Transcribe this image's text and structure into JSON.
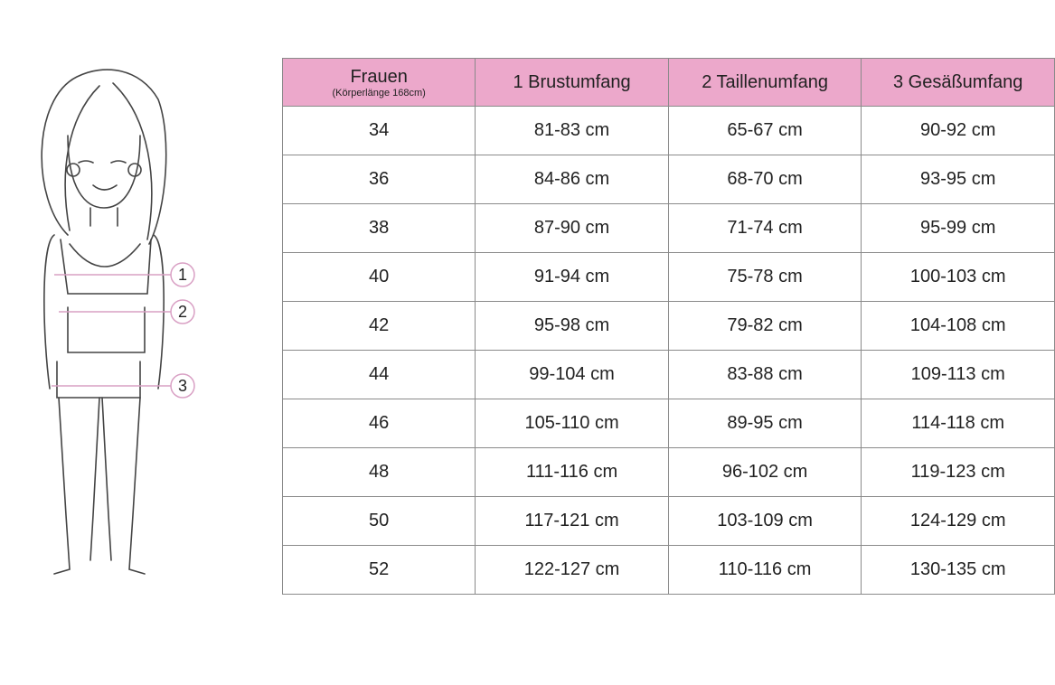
{
  "header": {
    "col0_title": "Frauen",
    "col0_subtitle": "(Körperlänge 168cm)",
    "col1": "1 Brustumfang",
    "col2": "2 Taillenumfang",
    "col3": "3 Gesäßumfang"
  },
  "rows": [
    [
      "34",
      "81-83 cm",
      "65-67 cm",
      "90-92 cm"
    ],
    [
      "36",
      "84-86 cm",
      "68-70 cm",
      "93-95 cm"
    ],
    [
      "38",
      "87-90 cm",
      "71-74 cm",
      "95-99 cm"
    ],
    [
      "40",
      "91-94 cm",
      "75-78 cm",
      "100-103 cm"
    ],
    [
      "42",
      "95-98 cm",
      "79-82 cm",
      "104-108 cm"
    ],
    [
      "44",
      "99-104 cm",
      "83-88 cm",
      "109-113 cm"
    ],
    [
      "46",
      "105-110 cm",
      "89-95 cm",
      "114-118 cm"
    ],
    [
      "48",
      "111-116 cm",
      "96-102 cm",
      "119-123 cm"
    ],
    [
      "50",
      "117-121 cm",
      "103-109 cm",
      "124-129 cm"
    ],
    [
      "52",
      "122-127 cm",
      "110-116 cm",
      "130-135 cm"
    ]
  ],
  "figure": {
    "markers": [
      "1",
      "2",
      "3"
    ]
  },
  "colors": {
    "header_bg": "#eca8cb",
    "marker": "#d9a0c4",
    "border": "#8a8a8a"
  }
}
